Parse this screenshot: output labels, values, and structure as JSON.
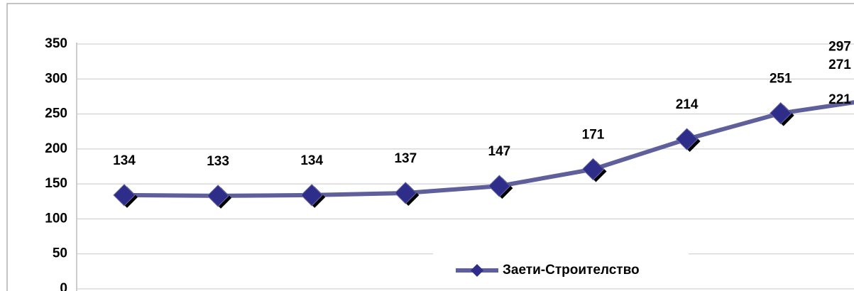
{
  "chart_data": {
    "type": "line",
    "categories": [
      null,
      null,
      null,
      null,
      null,
      null,
      null,
      null,
      null,
      null,
      null
    ],
    "series": [
      {
        "name": "Заети-Строителство",
        "color": "#5f5f9c",
        "marker_color": "#2e2e8a",
        "values": [
          134,
          133,
          134,
          137,
          147,
          171,
          214,
          251,
          271,
          297,
          221
        ]
      }
    ],
    "ylim": [
      0,
      350
    ],
    "yticks": [
      0,
      50,
      100,
      150,
      200,
      250,
      300,
      350
    ],
    "grid": true,
    "legend": "bottom"
  }
}
